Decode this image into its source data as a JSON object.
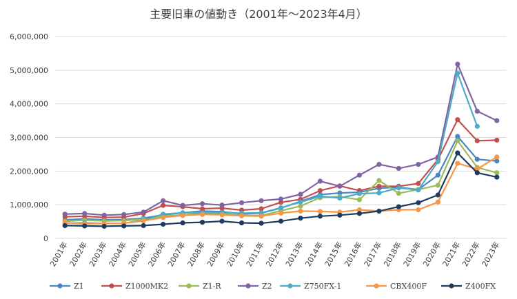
{
  "chart_data": {
    "type": "line",
    "title": "主要旧車の値動き（2001年～2023年4月）",
    "xlabel": "",
    "ylabel": "",
    "ylim": [
      0,
      6000000
    ],
    "yticks": [
      0,
      1000000,
      2000000,
      3000000,
      4000000,
      5000000,
      6000000
    ],
    "ytick_labels": [
      "0",
      "1,000,000",
      "2,000,000",
      "3,000,000",
      "4,000,000",
      "5,000,000",
      "6,000,000"
    ],
    "grid": true,
    "legend_position": "bottom",
    "categories": [
      "2001年",
      "2002年",
      "2003年",
      "2004年",
      "2005年",
      "2006年",
      "2007年",
      "2008年",
      "2009年",
      "2010年",
      "2011年",
      "2012年",
      "2013年",
      "2014年",
      "2015年",
      "2016年",
      "2017年",
      "2018年",
      "2019年",
      "2020年",
      "2021年",
      "2022年",
      "2023年"
    ],
    "series": [
      {
        "name": "Z1",
        "color": "#4a86c5",
        "values": [
          550000,
          580000,
          550000,
          560000,
          600000,
          700000,
          760000,
          810000,
          790000,
          730000,
          750000,
          900000,
          1100000,
          1300000,
          1350000,
          1370000,
          1490000,
          1520000,
          1450000,
          1880000,
          3030000,
          2350000,
          2300000
        ]
      },
      {
        "name": "Z1000MK2",
        "color": "#c0504d",
        "values": [
          640000,
          660000,
          620000,
          630000,
          740000,
          980000,
          940000,
          880000,
          900000,
          840000,
          880000,
          1070000,
          1160000,
          1420000,
          1560000,
          1420000,
          1550000,
          1550000,
          1630000,
          2340000,
          3530000,
          2900000,
          2920000
        ]
      },
      {
        "name": "Z1-R",
        "color": "#9bbb59",
        "values": [
          510000,
          540000,
          520000,
          530000,
          570000,
          660000,
          700000,
          730000,
          720000,
          690000,
          680000,
          820000,
          960000,
          1210000,
          1240000,
          1150000,
          1720000,
          1340000,
          1450000,
          1580000,
          2900000,
          2110000,
          1950000
        ]
      },
      {
        "name": "Z2",
        "color": "#8064a2",
        "values": [
          720000,
          740000,
          690000,
          710000,
          780000,
          1120000,
          980000,
          1030000,
          990000,
          1060000,
          1120000,
          1170000,
          1310000,
          1700000,
          1550000,
          1880000,
          2200000,
          2080000,
          2200000,
          2420000,
          5180000,
          3780000,
          3500000
        ]
      },
      {
        "name": "Z750FX-1",
        "color": "#4bacc6",
        "values": [
          450000,
          460000,
          440000,
          450000,
          540000,
          720000,
          760000,
          760000,
          760000,
          750000,
          760000,
          910000,
          1080000,
          1250000,
          1200000,
          1330000,
          1350000,
          1500000,
          1440000,
          2280000,
          4910000,
          3330000,
          null
        ]
      },
      {
        "name": "CBX400F",
        "color": "#f79646",
        "values": [
          460000,
          430000,
          440000,
          450000,
          520000,
          620000,
          680000,
          710000,
          700000,
          670000,
          660000,
          750000,
          810000,
          800000,
          780000,
          850000,
          810000,
          850000,
          850000,
          1080000,
          2230000,
          2060000,
          2420000
        ]
      },
      {
        "name": "Z400FX",
        "color": "#1f3a5f",
        "values": [
          380000,
          370000,
          360000,
          370000,
          380000,
          420000,
          460000,
          480000,
          510000,
          460000,
          450000,
          510000,
          600000,
          660000,
          690000,
          740000,
          810000,
          940000,
          1060000,
          1290000,
          2540000,
          1950000,
          1820000
        ]
      }
    ]
  }
}
